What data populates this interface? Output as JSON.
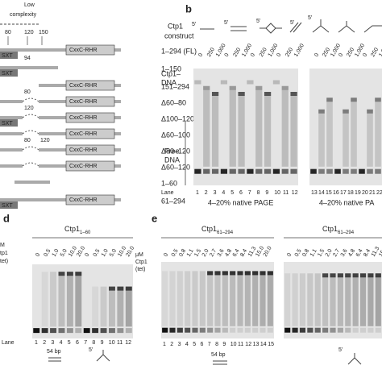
{
  "panel_a": {
    "header": [
      "Low",
      "complexity"
    ],
    "positions": [
      "80",
      "120",
      "150"
    ],
    "column_title": [
      "Ctp1",
      "construct"
    ],
    "rows": [
      {
        "label": "1–294 (FL)",
        "domains": [
          "SXT",
          "CxxC-RHR"
        ]
      },
      {
        "label": "1–150",
        "domains": [
          "SXT"
        ],
        "marks": [
          "94"
        ]
      },
      {
        "label": "151–294",
        "domains": [
          "CxxC-RHR"
        ]
      },
      {
        "label": "Δ60–80",
        "domains": [
          "CxxC-RHR"
        ],
        "marks": [
          "80"
        ]
      },
      {
        "label": "Δ100–120",
        "domains": [
          "SXT",
          "CxxC-RHR"
        ],
        "marks": [
          "120"
        ]
      },
      {
        "label": "Δ60–100",
        "domains": [
          "CxxC-RHR"
        ]
      },
      {
        "label": "Δ80–120",
        "domains": [
          "CxxC-RHR"
        ],
        "marks": [
          "80",
          "120"
        ]
      },
      {
        "label": "Δ60–120",
        "domains": [
          "CxxC-RHR"
        ]
      },
      {
        "label": "1–60",
        "domains": []
      },
      {
        "label": "61–294",
        "domains": [
          "SXT",
          "CxxC-RHR"
        ]
      }
    ]
  },
  "panel_b": {
    "label": "b",
    "primes": [
      "5′",
      "5′",
      "5′",
      "5′",
      "5′"
    ],
    "amounts": [
      "0",
      "250",
      "1,000"
    ],
    "complex_label": [
      "Ctp1–",
      "DNA"
    ],
    "free_label": [
      "Free",
      "DNA"
    ],
    "lane_label": "Lane",
    "lanes_left": [
      "1",
      "2",
      "3",
      "4",
      "5",
      "6",
      "7",
      "8",
      "9",
      "10",
      "11",
      "12"
    ],
    "lanes_right": [
      "13",
      "14",
      "15",
      "16",
      "17",
      "18",
      "19",
      "20",
      "21",
      "22"
    ],
    "captions": [
      "4–20% native PAGE",
      "4–20% native PA"
    ]
  },
  "panel_d": {
    "label": "d",
    "title": {
      "main": "Ctp1",
      "sub": "1–60"
    },
    "left_cropped": [
      "M",
      "tp1",
      "tet)"
    ],
    "concentrations": [
      "0",
      "0.5",
      "1.0",
      "5.0",
      "10.0",
      "20.0"
    ],
    "unit": [
      "μM",
      "Ctp1",
      "(tet)"
    ],
    "lane_label": "Lane",
    "lanes": [
      "1",
      "2",
      "3",
      "4",
      "5",
      "6",
      "7",
      "8",
      "9",
      "10",
      "11",
      "12"
    ],
    "dna": "54 bp",
    "prime": "5′"
  },
  "panel_e": {
    "label": "e",
    "title": {
      "main": "Ctp1",
      "sub": "61–294"
    },
    "concentrations": [
      "0",
      "0.5",
      "0.8",
      "1.1",
      "1.5",
      "2.0",
      "2.7",
      "3.6",
      "4.8",
      "6.4",
      "8.4",
      "11.3",
      "15.0",
      "20.0"
    ],
    "lanes": [
      "1",
      "2",
      "3",
      "4",
      "5",
      "6",
      "7",
      "8",
      "9",
      "10",
      "11",
      "12",
      "13",
      "14",
      "15"
    ],
    "dna": "54 bp",
    "prime": "5′"
  }
}
